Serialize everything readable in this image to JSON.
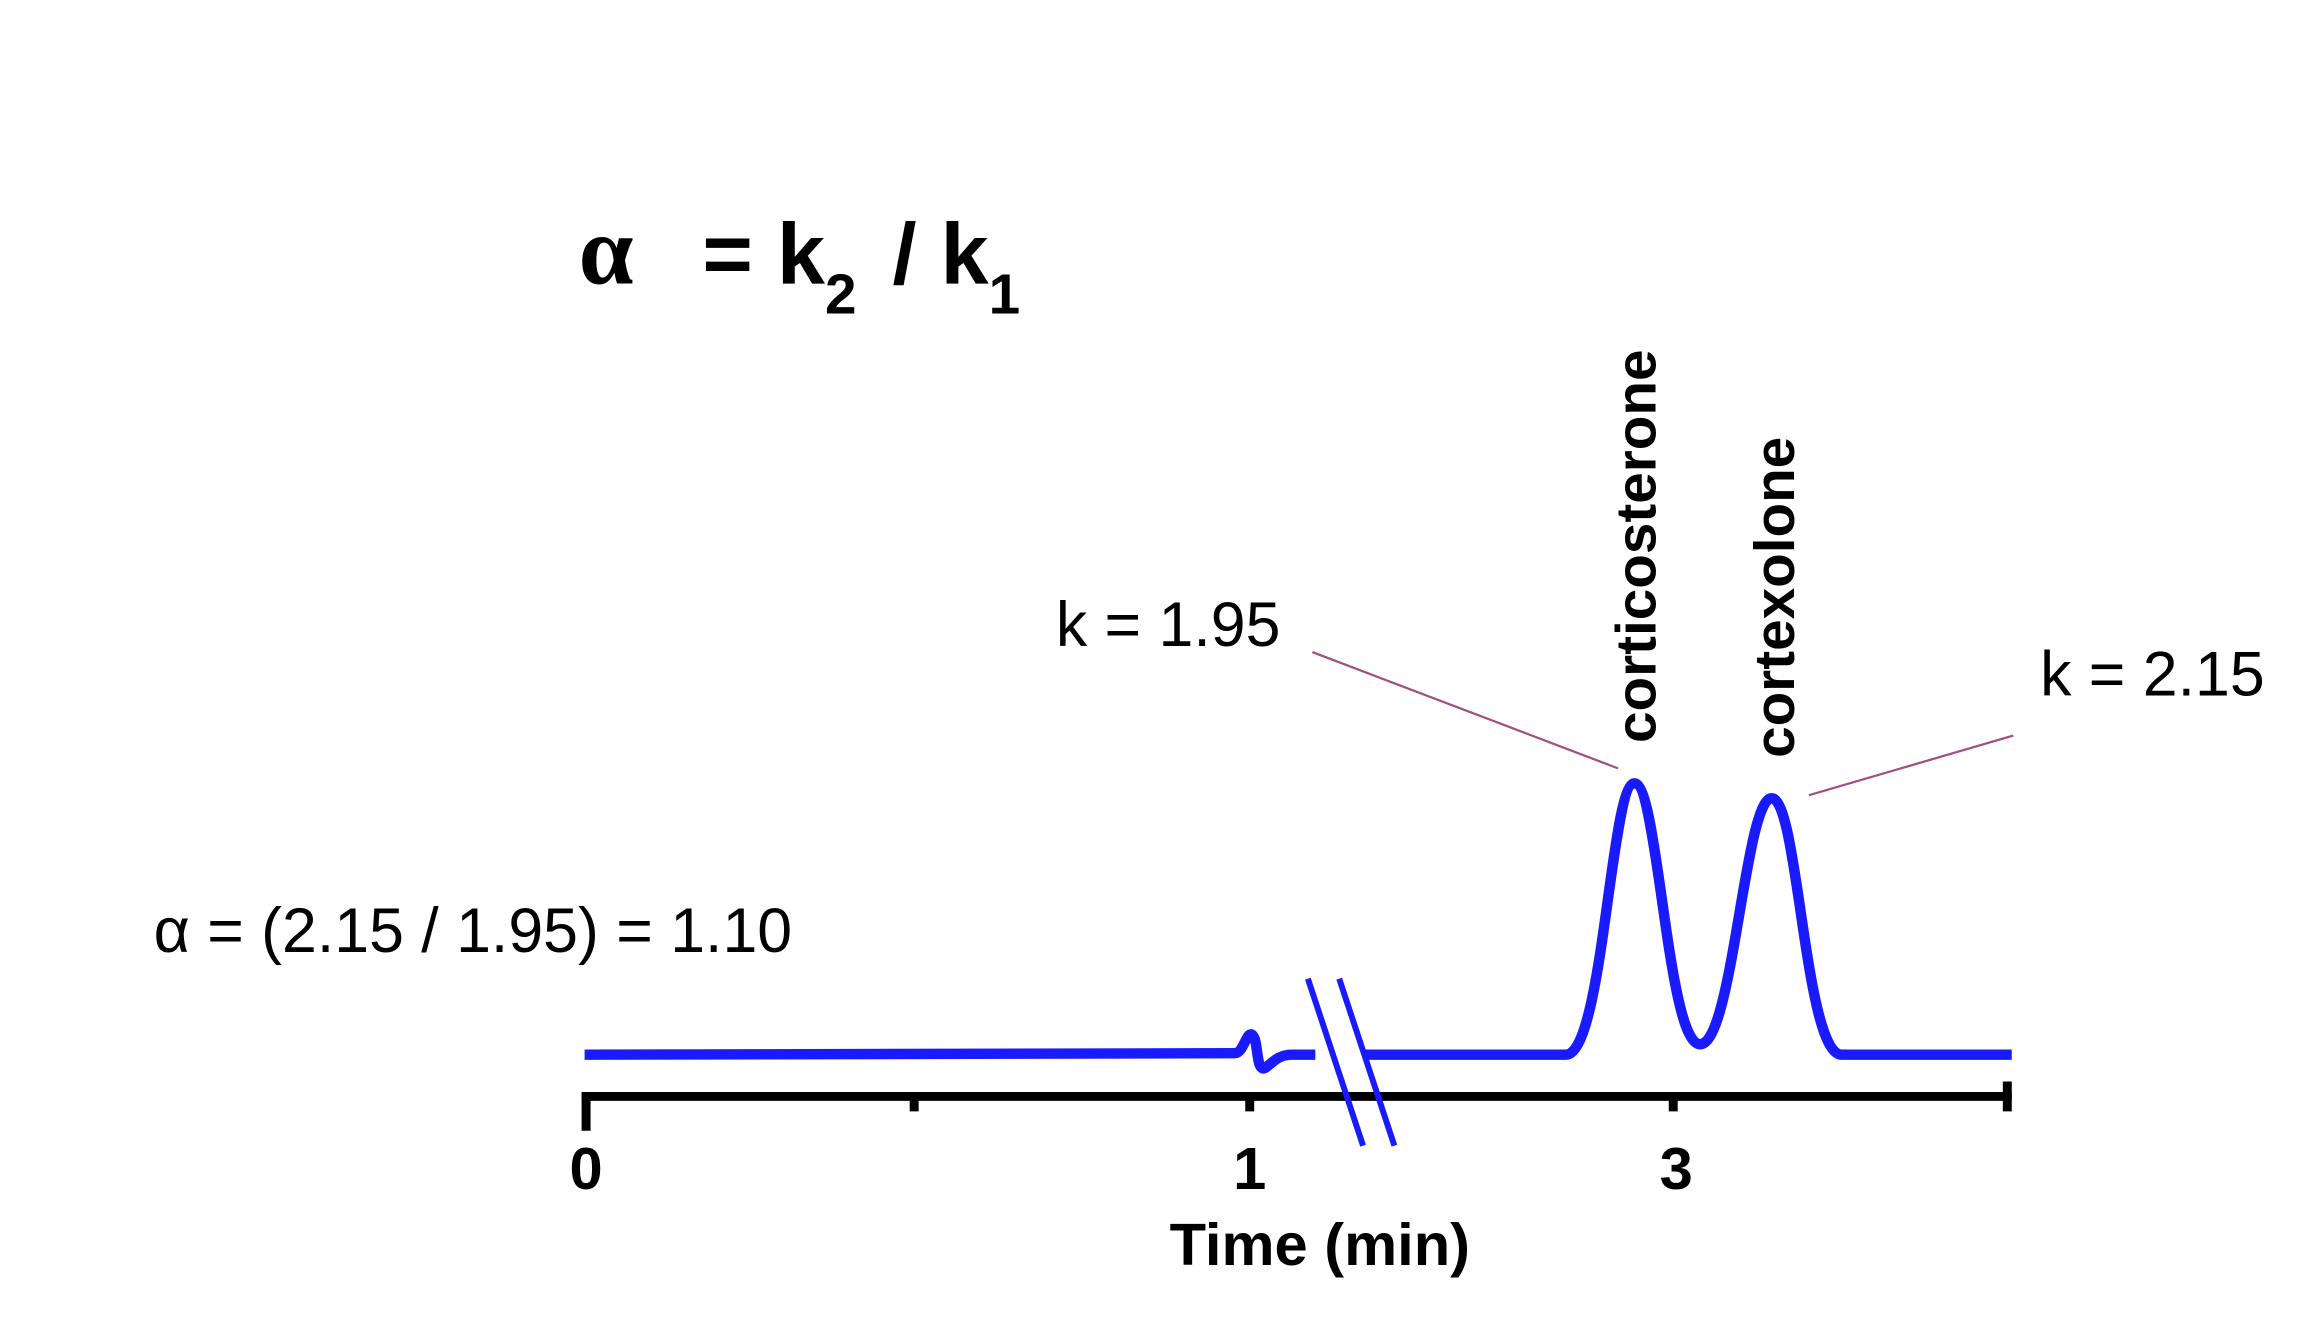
{
  "formula": [
    "α",
    "= k",
    "2",
    "/ k",
    "1"
  ],
  "alpha_result": "α = (2.15 / 1.95) = 1.10",
  "peaks": [
    {
      "name": "corticosterone",
      "k_label": "k = 1.95"
    },
    {
      "name": "cortexolone",
      "k_label": "k = 2.15"
    }
  ],
  "axis": {
    "ticks": [
      "0",
      "1",
      "3"
    ],
    "title": "Time (min)"
  }
}
